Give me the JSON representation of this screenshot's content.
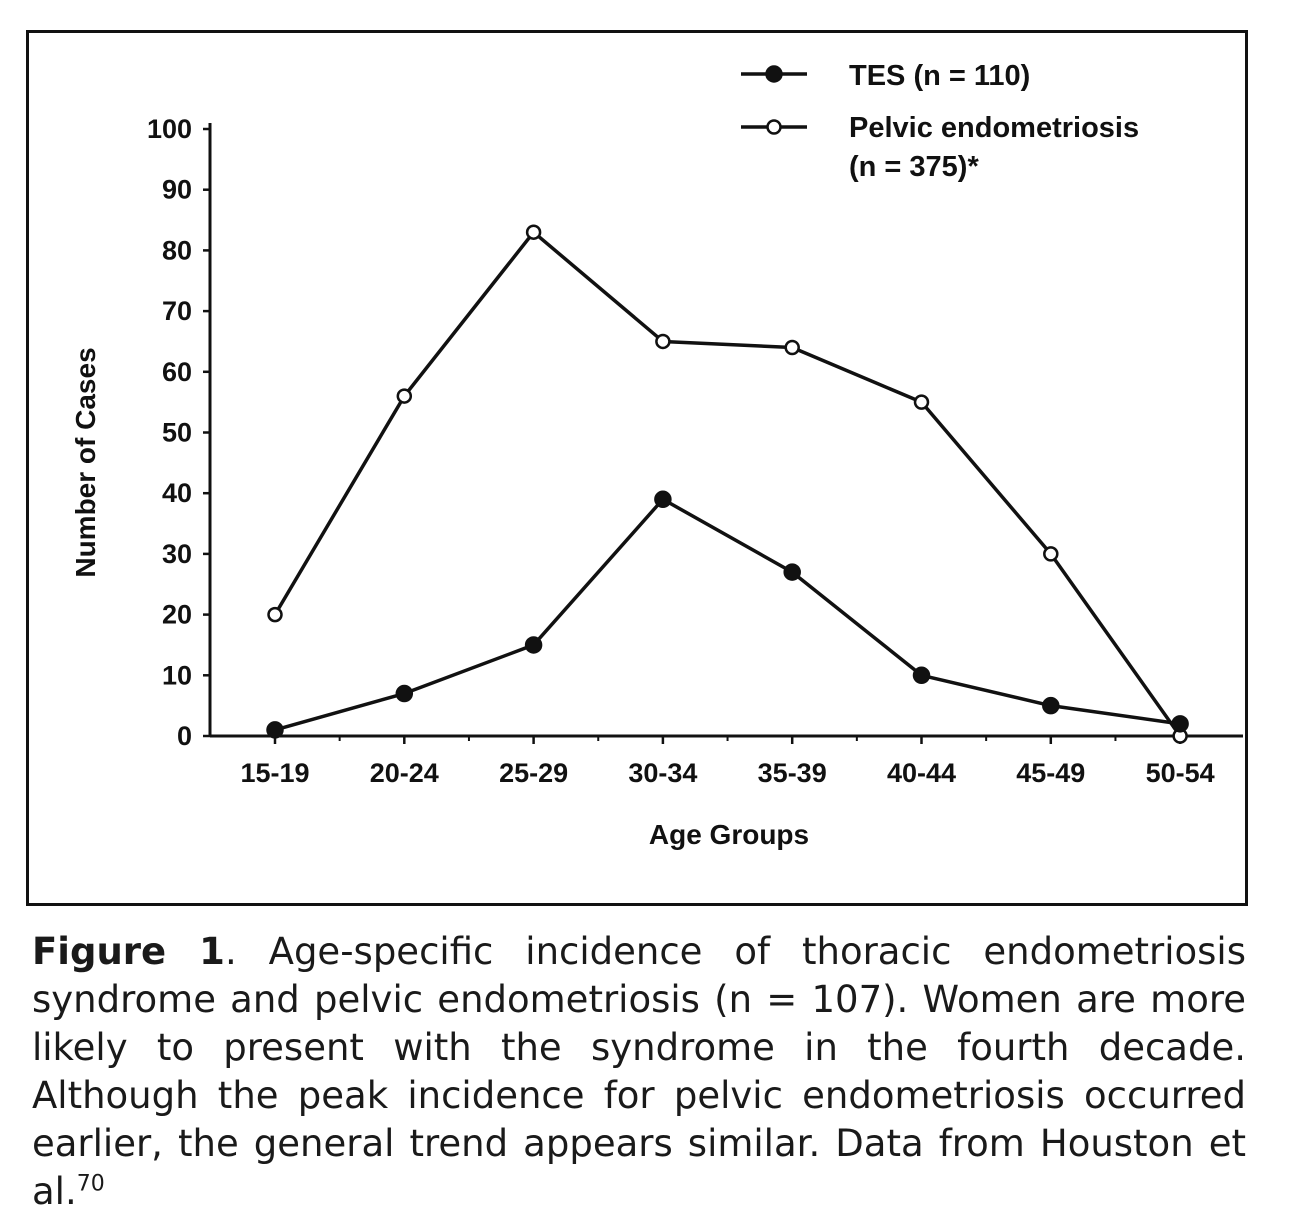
{
  "chart_data": {
    "type": "line",
    "categories": [
      "15-19",
      "20-24",
      "25-29",
      "30-34",
      "35-39",
      "40-44",
      "45-49",
      "50-54"
    ],
    "series": [
      {
        "name": "TES (n = 110)",
        "marker": "filled-circle",
        "values": [
          1,
          7,
          15,
          39,
          27,
          10,
          5,
          2
        ]
      },
      {
        "name": "Pelvic endometriosis (n = 375)*",
        "name_line1": "Pelvic endometriosis",
        "name_line2": "(n = 375)*",
        "marker": "open-circle",
        "values": [
          20,
          56,
          83,
          65,
          64,
          55,
          30,
          0
        ]
      }
    ],
    "xlabel": "Age Groups",
    "ylabel": "Number of Cases",
    "ylim": [
      0,
      100
    ],
    "yticks": [
      "0",
      "10",
      "20",
      "30",
      "40",
      "50",
      "60",
      "70",
      "80",
      "90",
      "100"
    ],
    "grid": false,
    "legend": "top-right",
    "colors": {
      "line": "#111111",
      "open_marker_fill": "#ffffff"
    }
  },
  "caption": {
    "label": "Figure 1",
    "text": ". Age-specific incidence of thoracic endometriosis syndrome and pelvic endometriosis (n = 107). Women are more likely to present with the syndrome in the fourth decade. Although the peak incidence for pelvic endometriosis occurred earlier, the general trend appears similar. Data from Houston et al.",
    "ref": "70"
  }
}
